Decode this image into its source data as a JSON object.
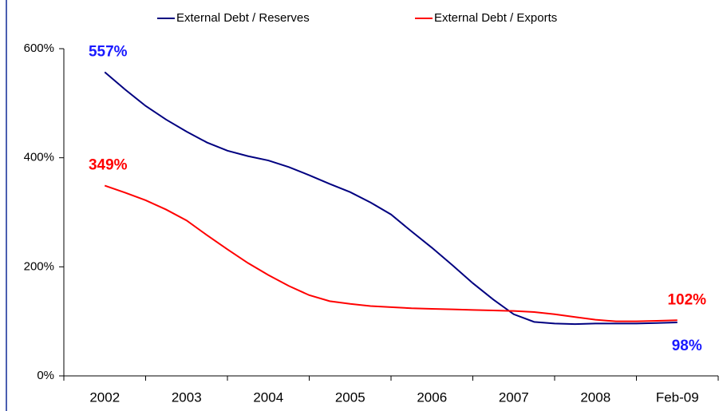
{
  "chart_data": {
    "type": "line",
    "categories": [
      "2002",
      null,
      null,
      null,
      "2003",
      null,
      null,
      null,
      "2004",
      null,
      null,
      null,
      "2005",
      null,
      null,
      null,
      "2006",
      null,
      null,
      null,
      "2007",
      null,
      null,
      null,
      "2008",
      null,
      null,
      null,
      "Feb-09"
    ],
    "series": [
      {
        "name": "External Debt / Reserves",
        "color": "#000080",
        "label_color": "#1a1aff",
        "values": [
          557,
          525,
          495,
          470,
          448,
          428,
          413,
          403,
          395,
          383,
          368,
          352,
          337,
          318,
          296,
          265,
          235,
          203,
          170,
          140,
          113,
          99,
          96,
          95,
          96,
          96,
          96,
          97,
          98
        ],
        "value_labels": [
          "557%",
          null,
          null,
          null,
          null,
          null,
          null,
          null,
          null,
          null,
          null,
          null,
          null,
          null,
          null,
          null,
          null,
          null,
          null,
          null,
          null,
          null,
          null,
          null,
          null,
          null,
          null,
          null,
          "98%"
        ]
      },
      {
        "name": "External Debt / Exports",
        "color": "#ff0000",
        "label_color": "#ff0000",
        "values": [
          349,
          336,
          322,
          305,
          285,
          258,
          232,
          207,
          185,
          165,
          148,
          137,
          132,
          128,
          126,
          124,
          123,
          122,
          121,
          120,
          119,
          117,
          113,
          108,
          103,
          100,
          100,
          101,
          102
        ],
        "value_labels": [
          "349%",
          null,
          null,
          null,
          null,
          null,
          null,
          null,
          null,
          null,
          null,
          null,
          null,
          null,
          null,
          null,
          null,
          null,
          null,
          null,
          null,
          null,
          null,
          null,
          null,
          null,
          null,
          null,
          "102%"
        ]
      }
    ],
    "ylim": [
      0,
      600
    ],
    "yticks": [
      {
        "value": 0,
        "label": "0%"
      },
      {
        "value": 200,
        "label": "200%"
      },
      {
        "value": 400,
        "label": "400%"
      },
      {
        "value": 600,
        "label": "600%"
      }
    ]
  }
}
